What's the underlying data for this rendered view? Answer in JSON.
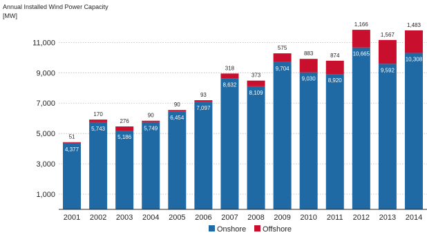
{
  "chart_data": {
    "type": "bar",
    "stacked": true,
    "title": "Annual Installed Wind Power Capacity",
    "unit_label": "[MW]",
    "categories": [
      "2001",
      "2002",
      "2003",
      "2004",
      "2005",
      "2006",
      "2007",
      "2008",
      "2009",
      "2010",
      "2011",
      "2012",
      "2013",
      "2014"
    ],
    "series": [
      {
        "name": "Onshore",
        "values": [
          4377,
          5743,
          5186,
          5749,
          6454,
          7097,
          8632,
          8109,
          9704,
          9030,
          8920,
          10665,
          9592,
          10308
        ],
        "color": "#1f6aa5"
      },
      {
        "name": "Offshore",
        "values": [
          51,
          170,
          276,
          90,
          90,
          93,
          318,
          373,
          575,
          883,
          874,
          1166,
          1567,
          1483
        ],
        "color": "#c8102e"
      }
    ],
    "onshore_labels": [
      "4,377",
      "5,743",
      "5,186",
      "5,749",
      "6,454",
      "7,097",
      "8,632",
      "8,109",
      "9,704",
      "9,030",
      "8,920",
      "10,665",
      "9,592",
      "10,308"
    ],
    "offshore_labels": [
      "51",
      "170",
      "276",
      "90",
      "90",
      "93",
      "318",
      "373",
      "575",
      "883",
      "874",
      "1,166",
      "1,567",
      "1,483"
    ],
    "yticks": [
      1000,
      3000,
      5000,
      7000,
      9000,
      11000
    ],
    "ytick_labels": [
      "1,000",
      "3,000",
      "5,000",
      "7,000",
      "9,000",
      "11,000"
    ],
    "ylim": [
      0,
      12200
    ],
    "grid": "horizontal dotted",
    "legend_placement": "bottom-center"
  }
}
